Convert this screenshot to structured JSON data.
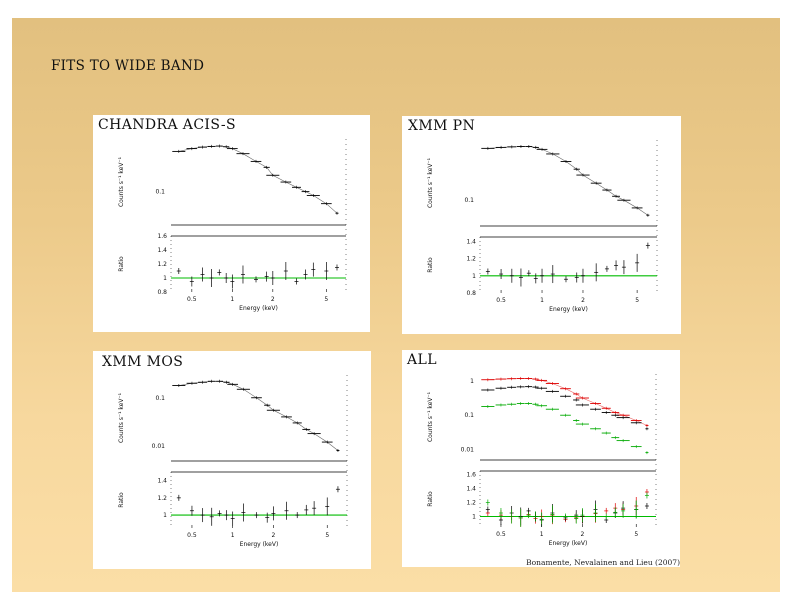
{
  "slide": {
    "title": "FITS TO WIDE BAND",
    "citation": "Bonamente, Nevalainen and Lieu (2007)"
  },
  "colors": {
    "background_top": "#e2c07f",
    "background_bottom": "#fbdea6",
    "model_line": "#00bb00",
    "data_black": "#000000",
    "data_red": "#dd0000",
    "data_green": "#00aa00"
  },
  "chart_data": [
    {
      "type": "scatter",
      "panel_label": "CHANDRA ACIS-S",
      "top_ylabel": "Counts s⁻¹ keV⁻¹",
      "top_yticks": [
        "0.1"
      ],
      "bottom_ylabel": "Ratio",
      "bottom_yticks": [
        "1.6",
        "1.4",
        "1.2",
        "1",
        "0.8"
      ],
      "xlabel": "Energy (keV)",
      "xticks": [
        "0.5",
        "1",
        "2",
        "5"
      ],
      "xscale": "log",
      "xlim": [
        0.35,
        7.0
      ],
      "ratio_ylim": [
        0.8,
        1.6
      ],
      "series": [
        {
          "color": "#000000",
          "x": [
            0.4,
            0.5,
            0.6,
            0.7,
            0.8,
            0.9,
            1.0,
            1.2,
            1.5,
            1.8,
            2.0,
            2.5,
            3.0,
            3.5,
            4.0,
            5.0,
            6.0
          ],
          "y": [
            0.55,
            0.62,
            0.66,
            0.68,
            0.69,
            0.67,
            0.62,
            0.5,
            0.36,
            0.28,
            0.2,
            0.15,
            0.12,
            0.1,
            0.085,
            0.06,
            0.04
          ],
          "ratio": [
            1.1,
            0.95,
            1.05,
            1.0,
            1.08,
            1.0,
            0.95,
            1.05,
            0.98,
            1.02,
            1.0,
            1.1,
            0.95,
            1.05,
            1.12,
            1.1,
            1.15
          ]
        }
      ]
    },
    {
      "type": "scatter",
      "panel_label": "XMM PN",
      "top_ylabel": "Counts s⁻¹ keV⁻¹",
      "top_yticks": [
        "0.1"
      ],
      "bottom_ylabel": "Ratio",
      "bottom_yticks": [
        "1.4",
        "1.2",
        "1",
        "0.8"
      ],
      "xlabel": "Energy (keV)",
      "xticks": [
        "0.5",
        "1",
        "2",
        "5"
      ],
      "xscale": "log",
      "xlim": [
        0.35,
        7.0
      ],
      "ratio_ylim": [
        0.8,
        1.45
      ],
      "series": [
        {
          "color": "#000000",
          "x": [
            0.4,
            0.5,
            0.6,
            0.7,
            0.8,
            0.9,
            1.0,
            1.2,
            1.5,
            1.8,
            2.0,
            2.5,
            3.0,
            3.5,
            4.0,
            5.0,
            6.0
          ],
          "y": [
            1.1,
            1.15,
            1.18,
            1.2,
            1.2,
            1.15,
            1.05,
            0.85,
            0.6,
            0.42,
            0.32,
            0.22,
            0.16,
            0.12,
            0.1,
            0.07,
            0.05
          ],
          "ratio": [
            1.05,
            1.02,
            1.0,
            0.98,
            1.03,
            0.97,
            1.0,
            1.02,
            0.96,
            0.98,
            1.0,
            1.04,
            1.08,
            1.12,
            1.1,
            1.15,
            1.35
          ]
        }
      ]
    },
    {
      "type": "scatter",
      "panel_label": "XMM MOS",
      "top_ylabel": "Counts s⁻¹ keV⁻¹",
      "top_yticks": [
        "0.1",
        "0.01"
      ],
      "bottom_ylabel": "Ratio",
      "bottom_yticks": [
        "1.4",
        "1.2",
        "1"
      ],
      "xlabel": "Energy (keV)",
      "xticks": [
        "0.5",
        "1",
        "2",
        "5"
      ],
      "xscale": "log",
      "xlim": [
        0.35,
        7.0
      ],
      "ratio_ylim": [
        0.85,
        1.5
      ],
      "series": [
        {
          "color": "#000000",
          "x": [
            0.4,
            0.5,
            0.6,
            0.7,
            0.8,
            0.9,
            1.0,
            1.2,
            1.5,
            1.8,
            2.0,
            2.5,
            3.0,
            3.5,
            4.0,
            5.0,
            6.0
          ],
          "y": [
            0.18,
            0.2,
            0.21,
            0.22,
            0.22,
            0.21,
            0.19,
            0.15,
            0.1,
            0.07,
            0.055,
            0.04,
            0.03,
            0.022,
            0.018,
            0.012,
            0.008
          ],
          "ratio": [
            1.2,
            1.05,
            1.0,
            0.98,
            1.02,
            1.0,
            0.96,
            1.03,
            1.0,
            0.97,
            1.02,
            1.05,
            1.0,
            1.06,
            1.08,
            1.1,
            1.3
          ]
        }
      ]
    },
    {
      "type": "scatter",
      "panel_label": "ALL",
      "top_ylabel": "Counts s⁻¹ keV⁻¹",
      "top_yticks": [
        "1",
        "0.1",
        "0.01"
      ],
      "bottom_ylabel": "Ratio",
      "bottom_yticks": [
        "1.6",
        "1.4",
        "1.2",
        "1"
      ],
      "xlabel": "Energy (keV)",
      "xticks": [
        "0.5",
        "1",
        "2",
        "5"
      ],
      "xscale": "log",
      "xlim": [
        0.35,
        7.0
      ],
      "ratio_ylim": [
        0.85,
        1.65
      ],
      "series": [
        {
          "color": "#dd0000",
          "x": [
            0.4,
            0.5,
            0.6,
            0.7,
            0.8,
            0.9,
            1.0,
            1.2,
            1.5,
            1.8,
            2.0,
            2.5,
            3.0,
            3.5,
            4.0,
            5.0,
            6.0
          ],
          "y": [
            1.1,
            1.15,
            1.18,
            1.2,
            1.2,
            1.15,
            1.05,
            0.85,
            0.6,
            0.42,
            0.32,
            0.22,
            0.16,
            0.12,
            0.1,
            0.07,
            0.05
          ],
          "ratio": [
            1.05,
            1.02,
            1.0,
            0.98,
            1.03,
            0.97,
            1.0,
            1.02,
            0.96,
            0.98,
            1.0,
            1.04,
            1.08,
            1.12,
            1.1,
            1.15,
            1.35
          ]
        },
        {
          "color": "#000000",
          "x": [
            0.4,
            0.5,
            0.6,
            0.7,
            0.8,
            0.9,
            1.0,
            1.2,
            1.5,
            1.8,
            2.0,
            2.5,
            3.0,
            3.5,
            4.0,
            5.0,
            6.0
          ],
          "y": [
            0.55,
            0.62,
            0.66,
            0.68,
            0.69,
            0.67,
            0.62,
            0.5,
            0.36,
            0.28,
            0.2,
            0.15,
            0.12,
            0.1,
            0.085,
            0.06,
            0.04
          ],
          "ratio": [
            1.1,
            0.95,
            1.05,
            1.0,
            1.08,
            1.0,
            0.95,
            1.05,
            0.98,
            1.02,
            1.0,
            1.1,
            0.95,
            1.05,
            1.12,
            1.1,
            1.15
          ]
        },
        {
          "color": "#00aa00",
          "x": [
            0.4,
            0.5,
            0.6,
            0.7,
            0.8,
            0.9,
            1.0,
            1.2,
            1.5,
            1.8,
            2.0,
            2.5,
            3.0,
            3.5,
            4.0,
            5.0,
            6.0
          ],
          "y": [
            0.18,
            0.2,
            0.21,
            0.22,
            0.22,
            0.21,
            0.19,
            0.15,
            0.1,
            0.07,
            0.055,
            0.04,
            0.03,
            0.022,
            0.018,
            0.012,
            0.008
          ],
          "ratio": [
            1.2,
            1.05,
            1.0,
            0.98,
            1.02,
            1.0,
            0.96,
            1.03,
            1.0,
            0.97,
            1.02,
            1.05,
            1.0,
            1.06,
            1.08,
            1.1,
            1.3
          ]
        }
      ]
    }
  ]
}
